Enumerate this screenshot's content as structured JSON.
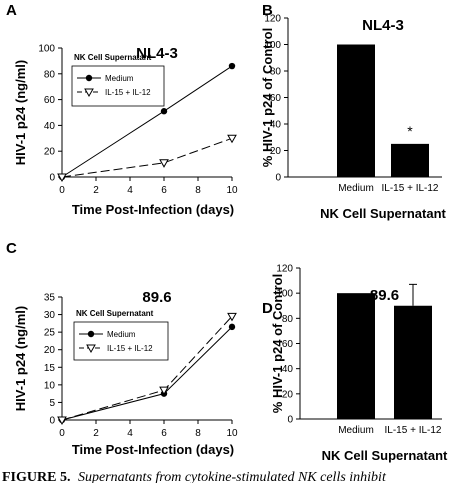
{
  "chart_data": [
    {
      "panel": "A",
      "type": "line",
      "title": "NL4-3",
      "xlabel": "Time Post-Infection (days)",
      "ylabel": "HIV-1 p24 (ng/ml)",
      "xlim": [
        0,
        10
      ],
      "ylim": [
        0,
        100
      ],
      "xticks": [
        0,
        2,
        4,
        6,
        8,
        10
      ],
      "yticks": [
        0,
        20,
        40,
        60,
        80,
        100
      ],
      "legend_title": "NK Cell Supernatant",
      "legend_position": "top-left",
      "grid": false,
      "series": [
        {
          "name": "Medium",
          "marker": "filled-circle",
          "line": "solid",
          "x": [
            0,
            6,
            10
          ],
          "y": [
            0,
            51,
            86
          ]
        },
        {
          "name": "IL-15 + IL-12",
          "marker": "open-triangle-down",
          "line": "dashed",
          "x": [
            0,
            6,
            10
          ],
          "y": [
            0,
            11,
            30
          ]
        }
      ]
    },
    {
      "panel": "B",
      "type": "bar",
      "title": "NL4-3",
      "xlabel": "NK Cell Supernatant",
      "ylabel": "% HIV-1 p24 of Control",
      "ylim": [
        0,
        120
      ],
      "yticks": [
        0,
        20,
        40,
        60,
        80,
        100,
        120
      ],
      "categories": [
        "Medium",
        "IL-15 + IL-12"
      ],
      "values": [
        100,
        25
      ],
      "annotations": [
        {
          "category": "IL-15 + IL-12",
          "text": "*"
        }
      ],
      "grid": false
    },
    {
      "panel": "C",
      "type": "line",
      "title": "89.6",
      "xlabel": "Time Post-Infection (days)",
      "ylabel": "HIV-1 p24 (ng/ml)",
      "xlim": [
        0,
        10
      ],
      "ylim": [
        0,
        35
      ],
      "xticks": [
        0,
        2,
        4,
        6,
        8,
        10
      ],
      "yticks": [
        0,
        5,
        10,
        15,
        20,
        25,
        30,
        35
      ],
      "legend_title": "NK Cell Supernatant",
      "legend_position": "top-left",
      "grid": false,
      "series": [
        {
          "name": "Medium",
          "marker": "filled-circle",
          "line": "solid",
          "x": [
            0,
            6,
            10
          ],
          "y": [
            0,
            7.5,
            26.5
          ]
        },
        {
          "name": "IL-15 + IL-12",
          "marker": "open-triangle-down",
          "line": "dashed",
          "x": [
            0,
            6,
            10
          ],
          "y": [
            0,
            8.5,
            29.5
          ]
        }
      ]
    },
    {
      "panel": "D",
      "type": "bar",
      "title": "89.6",
      "xlabel": "NK Cell Supernatant",
      "ylabel": "% HIV-1 p24 of Control",
      "ylim": [
        0,
        120
      ],
      "yticks": [
        0,
        20,
        40,
        60,
        80,
        100,
        120
      ],
      "categories": [
        "Medium",
        "IL-15 + IL-12"
      ],
      "values": [
        100,
        90
      ],
      "error": [
        0,
        17
      ],
      "grid": false
    }
  ],
  "caption": {
    "label": "FIGURE 5.",
    "text": "Supernatants from cytokine-stimulated NK cells inhibit"
  }
}
